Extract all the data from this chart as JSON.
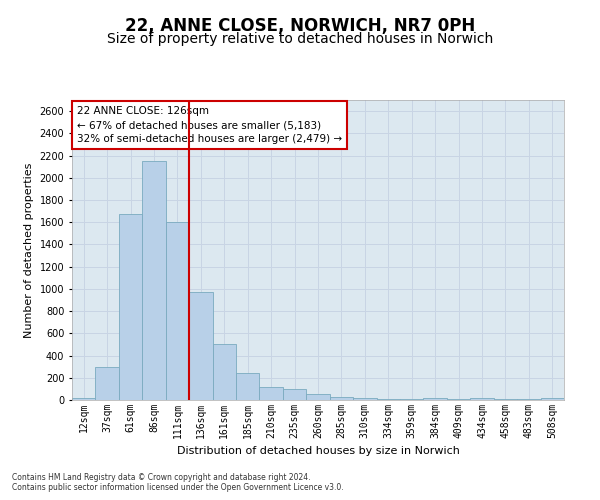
{
  "title": "22, ANNE CLOSE, NORWICH, NR7 0PH",
  "subtitle": "Size of property relative to detached houses in Norwich",
  "xlabel": "Distribution of detached houses by size in Norwich",
  "ylabel": "Number of detached properties",
  "categories": [
    "12sqm",
    "37sqm",
    "61sqm",
    "86sqm",
    "111sqm",
    "136sqm",
    "161sqm",
    "185sqm",
    "210sqm",
    "235sqm",
    "260sqm",
    "285sqm",
    "310sqm",
    "334sqm",
    "359sqm",
    "384sqm",
    "409sqm",
    "434sqm",
    "458sqm",
    "483sqm",
    "508sqm"
  ],
  "values": [
    20,
    300,
    1670,
    2150,
    1600,
    970,
    500,
    245,
    120,
    100,
    50,
    30,
    15,
    10,
    5,
    20,
    5,
    20,
    5,
    5,
    20
  ],
  "bar_color": "#b8d0e8",
  "bar_edgecolor": "#7aaabf",
  "vline_x_index": 4.5,
  "vline_color": "#cc0000",
  "annotation_text": "22 ANNE CLOSE: 126sqm\n← 67% of detached houses are smaller (5,183)\n32% of semi-detached houses are larger (2,479) →",
  "annotation_box_facecolor": "white",
  "annotation_box_edgecolor": "#cc0000",
  "ylim": [
    0,
    2700
  ],
  "yticks": [
    0,
    200,
    400,
    600,
    800,
    1000,
    1200,
    1400,
    1600,
    1800,
    2000,
    2200,
    2400,
    2600
  ],
  "grid_color": "#c8d4e4",
  "plot_bg_color": "#dce8f0",
  "fig_bg_color": "#ffffff",
  "title_fontsize": 12,
  "subtitle_fontsize": 10,
  "axis_label_fontsize": 8,
  "tick_fontsize": 7,
  "annotation_fontsize": 7.5,
  "footer1": "Contains HM Land Registry data © Crown copyright and database right 2024.",
  "footer2": "Contains public sector information licensed under the Open Government Licence v3.0."
}
